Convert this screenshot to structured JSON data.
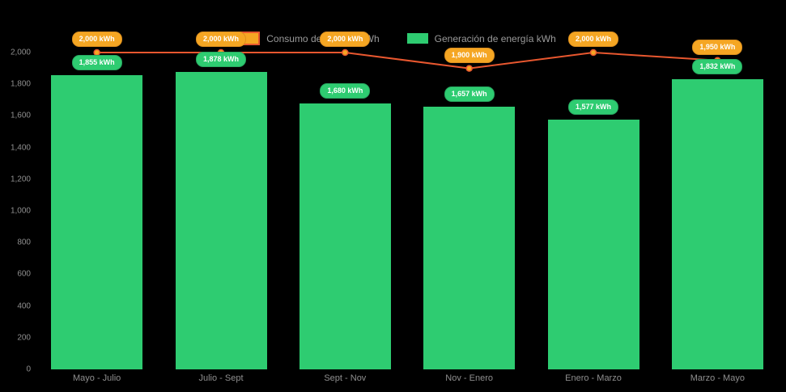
{
  "chart_data": {
    "type": "bar+line",
    "title": "",
    "categories": [
      "Mayo - Julio",
      "Julio - Sept",
      "Sept - Nov",
      "Nov - Enero",
      "Enero - Marzo",
      "Marzo - Mayo"
    ],
    "series": [
      {
        "name": "Consumo de energía kWh",
        "type": "line",
        "color": "#e8572f",
        "marker_color": "#f5a623",
        "label_bg": "#f5a623",
        "label_border": "#dd8f1e",
        "values": [
          2000,
          2000,
          2000,
          1900,
          2000,
          1950
        ],
        "labels": [
          "2,000 kWh",
          "2,000 kWh",
          "2,000 kWh",
          "1,900 kWh",
          "2,000 kWh",
          "1,950 kWh"
        ]
      },
      {
        "name": "Generación de energía kWh",
        "type": "bar",
        "color": "#2ecc71",
        "label_bg": "#2ecc71",
        "label_border": "#27a860",
        "values": [
          1855,
          1878,
          1680,
          1657,
          1577,
          1832
        ],
        "labels": [
          "1,855 kWh",
          "1,878 kWh",
          "1,680 kWh",
          "1,657 kWh",
          "1,577 kWh",
          "1,832 kWh"
        ]
      }
    ],
    "yticks": [
      {
        "label": "0",
        "value": 0
      },
      {
        "label": "200",
        "value": 200
      },
      {
        "label": "400",
        "value": 400
      },
      {
        "label": "600",
        "value": 600
      },
      {
        "label": "800",
        "value": 800
      },
      {
        "label": "1,000",
        "value": 1000
      },
      {
        "label": "1,200",
        "value": 1200
      },
      {
        "label": "1,400",
        "value": 1400
      },
      {
        "label": "1,600",
        "value": 1600
      },
      {
        "label": "1,800",
        "value": 1800
      },
      {
        "label": "2,000",
        "value": 2000
      }
    ],
    "ylim": [
      0,
      2000
    ],
    "axis_color": "#8f8f8f",
    "legend_position": "top"
  }
}
